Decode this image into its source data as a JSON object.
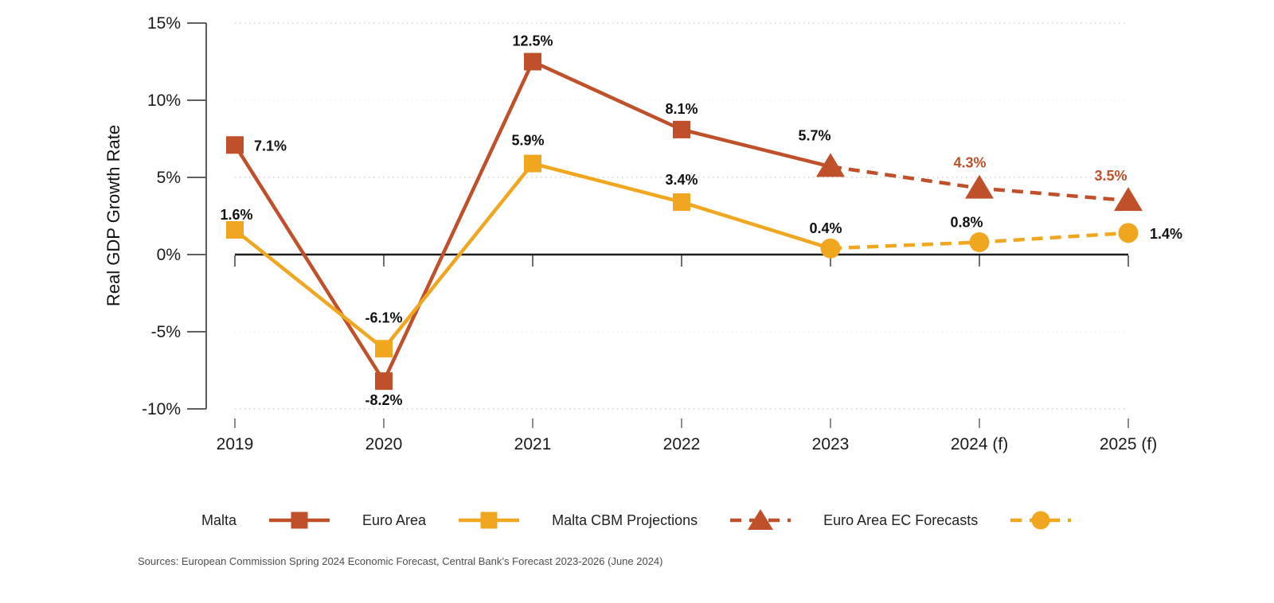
{
  "chart_data": {
    "type": "line",
    "title": "",
    "ylabel": "Real GDP Growth Rate",
    "x_categories": [
      "2019",
      "2020",
      "2021",
      "2022",
      "2023",
      "2024 (f)",
      "2025 (f)"
    ],
    "ylim": [
      -10,
      15
    ],
    "y_ticks": [
      {
        "value": 15,
        "label": "15%"
      },
      {
        "value": 10,
        "label": "10%"
      },
      {
        "value": 5,
        "label": "5%"
      },
      {
        "value": 0,
        "label": "0%"
      },
      {
        "value": -5,
        "label": "-5%"
      },
      {
        "value": -10,
        "label": "-10%"
      }
    ],
    "gridlines": {
      "dotted_at": [
        15,
        5,
        -10
      ],
      "faint_at": [
        10,
        -5
      ],
      "zero_line": true
    },
    "legend_position": "bottom",
    "series": [
      {
        "name": "Malta",
        "color": "#c0502a",
        "line_style": "solid",
        "marker": "square",
        "start_index": 0,
        "values": [
          7.1,
          -8.2,
          12.5,
          8.1,
          5.7
        ],
        "marker_indices": [
          0,
          1,
          2,
          3
        ],
        "point_labels": [
          {
            "text": "7.1%",
            "dx": 24,
            "dy": 7,
            "anchor": "start"
          },
          {
            "text": "-8.2%",
            "dx": 0,
            "dy": 30,
            "anchor": "middle"
          },
          {
            "text": "12.5%",
            "dx": 0,
            "dy": -20,
            "anchor": "middle"
          },
          {
            "text": "8.1%",
            "dx": 0,
            "dy": -20,
            "anchor": "middle"
          },
          null
        ]
      },
      {
        "name": "Euro Area",
        "color": "#f0a71f",
        "line_style": "solid",
        "marker": "square",
        "start_index": 0,
        "values": [
          1.6,
          -6.1,
          5.9,
          3.4,
          0.4
        ],
        "marker_indices": [
          0,
          1,
          2,
          3
        ],
        "point_labels": [
          {
            "text": "1.6%",
            "dx": 2,
            "dy": -13,
            "anchor": "middle"
          },
          {
            "text": "-6.1%",
            "dx": 0,
            "dy": -33,
            "anchor": "middle"
          },
          {
            "text": "5.9%",
            "dx": -6,
            "dy": -23,
            "anchor": "middle"
          },
          {
            "text": "3.4%",
            "dx": 0,
            "dy": -22,
            "anchor": "middle"
          },
          null
        ]
      },
      {
        "name": "Malta CBM Projections",
        "color": "#c0502a",
        "line_style": "dashed",
        "marker": "triangle",
        "start_index": 4,
        "values": [
          5.7,
          4.3,
          3.5
        ],
        "marker_indices": [
          0,
          1,
          2
        ],
        "point_labels": [
          {
            "text": "5.7%",
            "dx": -20,
            "dy": -33,
            "anchor": "middle",
            "color": "#111111"
          },
          {
            "text": "4.3%",
            "dx": -12,
            "dy": -26,
            "anchor": "middle",
            "color": "#c0502a"
          },
          {
            "text": "3.5%",
            "dx": -22,
            "dy": -25,
            "anchor": "middle",
            "color": "#c0502a"
          }
        ]
      },
      {
        "name": "Euro Area EC Forecasts",
        "color": "#f0a71f",
        "line_style": "dashed",
        "marker": "circle",
        "start_index": 4,
        "values": [
          0.4,
          0.8,
          1.4
        ],
        "marker_indices": [
          0,
          1,
          2
        ],
        "point_labels": [
          {
            "text": "0.4%",
            "dx": -6,
            "dy": -19,
            "anchor": "middle"
          },
          {
            "text": "0.8%",
            "dx": -16,
            "dy": -19,
            "anchor": "middle"
          },
          {
            "text": "1.4%",
            "dx": 27,
            "dy": 7,
            "anchor": "start"
          }
        ]
      }
    ],
    "default_label_color": "#111111",
    "source_note": "Sources: European Commission Spring 2024 Economic Forecast, Central Bank’s Forecast 2023-2026 (June 2024)"
  },
  "colors": {
    "axis_black": "#1a1a1a",
    "spine_grey": "#4a4a4a",
    "grid_dotted": "#c9c9c9",
    "grid_faint": "#ededed",
    "bottom_tick": "#666666",
    "zero_tick": "#3f3f3f"
  }
}
